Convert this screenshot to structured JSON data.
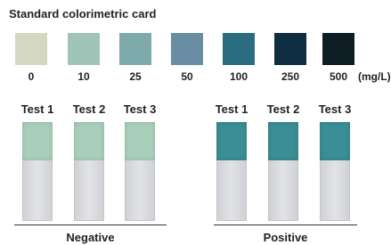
{
  "title": "Standard colorimetric card",
  "unit": "(mg/L)",
  "swatches": [
    {
      "label": "0",
      "color": "#d5d8c0"
    },
    {
      "label": "10",
      "color": "#a0c5b8"
    },
    {
      "label": "25",
      "color": "#7eaaac"
    },
    {
      "label": "50",
      "color": "#698da3"
    },
    {
      "label": "100",
      "color": "#2a6d80"
    },
    {
      "label": "250",
      "color": "#0f2d40"
    },
    {
      "label": "500",
      "color": "#0e1d24"
    }
  ],
  "groups": [
    {
      "name": "Negative",
      "pad_color": "#a9cfbb",
      "tests": [
        "Test 1",
        "Test 2",
        "Test 3"
      ]
    },
    {
      "name": "Positive",
      "pad_color": "#3b8e95",
      "tests": [
        "Test 1",
        "Test 2",
        "Test 3"
      ]
    }
  ]
}
